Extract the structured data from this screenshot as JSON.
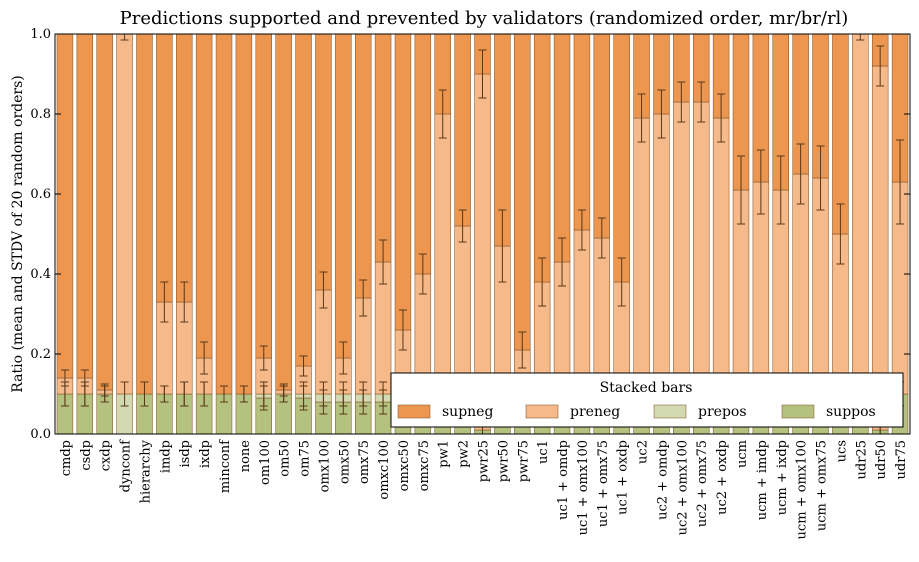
{
  "chart_data": {
    "type": "bar",
    "stacked": true,
    "title": "Predictions supported and prevented by validators (randomized order, mr/br/rl)",
    "xlabel": "",
    "ylabel": "Ratio (mean and STDV of 20 random orders)",
    "ylim": [
      0,
      1.0
    ],
    "yticks": [
      "0.0",
      "0.2",
      "0.4",
      "0.6",
      "0.8",
      "1.0"
    ],
    "grid": false,
    "legend": {
      "title": "Stacked bars",
      "placement": "bottom-right"
    },
    "categories": [
      "cmdp",
      "csdp",
      "cxdp",
      "dynconf",
      "hierarchy",
      "imdp",
      "isdp",
      "ixdp",
      "minconf",
      "none",
      "om100",
      "om50",
      "om75",
      "omx100",
      "omx50",
      "omx75",
      "omxc100",
      "omxc50",
      "omxc75",
      "pw1",
      "pw2",
      "pwr25",
      "pwr50",
      "pwr75",
      "uc1",
      "uc1 + omdp",
      "uc1 + omx100",
      "uc1 + omx75",
      "uc1 + oxdp",
      "uc2",
      "uc2 + omdp",
      "uc2 + omx100",
      "uc2 + omx75",
      "uc2 + oxdp",
      "ucm",
      "ucm + imdp",
      "ucm + ixdp",
      "ucm + omx100",
      "ucm + omx75",
      "ucs",
      "udr25",
      "udr50",
      "udr75"
    ],
    "series": [
      {
        "name": "suppos",
        "color": "#b5c17f",
        "values": [
          0.1,
          0.1,
          0.1,
          0.0,
          0.1,
          0.1,
          0.1,
          0.1,
          0.1,
          0.1,
          0.09,
          0.1,
          0.09,
          0.08,
          0.08,
          0.08,
          0.08,
          0.09,
          0.1,
          0.1,
          0.1,
          0.01,
          0.1,
          0.1,
          0.1,
          0.1,
          0.1,
          0.1,
          0.1,
          0.1,
          0.1,
          0.1,
          0.1,
          0.1,
          0.1,
          0.1,
          0.1,
          0.1,
          0.1,
          0.1,
          0.1,
          0.01,
          0.1
        ]
      },
      {
        "name": "prepos",
        "color": "#d3dab1",
        "values": [
          0.0,
          0.0,
          0.0,
          0.1,
          0.0,
          0.0,
          0.0,
          0.0,
          0.0,
          0.0,
          0.01,
          0.0,
          0.01,
          0.02,
          0.02,
          0.02,
          0.02,
          0.01,
          0.0,
          0.0,
          0.0,
          0.0,
          0.0,
          0.0,
          0.0,
          0.0,
          0.0,
          0.0,
          0.0,
          0.0,
          0.0,
          0.0,
          0.0,
          0.0,
          0.0,
          0.0,
          0.0,
          0.0,
          0.0,
          0.0,
          0.0,
          0.0,
          0.0
        ]
      },
      {
        "name": "preneg",
        "color": "#f5b98a",
        "values": [
          0.04,
          0.04,
          0.01,
          0.9,
          0.0,
          0.23,
          0.23,
          0.09,
          0.0,
          0.0,
          0.09,
          0.01,
          0.07,
          0.26,
          0.09,
          0.24,
          0.33,
          0.16,
          0.3,
          0.7,
          0.42,
          0.89,
          0.37,
          0.11,
          0.28,
          0.33,
          0.41,
          0.39,
          0.28,
          0.69,
          0.7,
          0.73,
          0.73,
          0.69,
          0.51,
          0.53,
          0.51,
          0.55,
          0.54,
          0.4,
          0.9,
          0.91,
          0.53
        ]
      },
      {
        "name": "supneg",
        "color": "#ec9650",
        "values": [
          0.86,
          0.86,
          0.89,
          0.0,
          0.9,
          0.67,
          0.67,
          0.81,
          0.9,
          0.9,
          0.81,
          0.89,
          0.83,
          0.64,
          0.81,
          0.66,
          0.57,
          0.74,
          0.6,
          0.2,
          0.48,
          0.1,
          0.53,
          0.79,
          0.62,
          0.57,
          0.49,
          0.51,
          0.62,
          0.21,
          0.2,
          0.17,
          0.17,
          0.21,
          0.39,
          0.37,
          0.39,
          0.35,
          0.36,
          0.5,
          0.0,
          0.08,
          0.37
        ]
      }
    ],
    "error_bars": {
      "suppos_top_std": [
        0.03,
        0.03,
        0.02,
        0.0,
        0.03,
        0.02,
        0.03,
        0.03,
        0.02,
        0.02,
        0.03,
        0.02,
        0.03,
        0.03,
        0.03,
        0.03,
        0.03,
        0.03,
        0.03,
        0.03,
        0.02,
        0.01,
        0.03,
        0.03,
        0.03,
        0.03,
        0.03,
        0.03,
        0.03,
        0.03,
        0.03,
        0.03,
        0.03,
        0.03,
        0.03,
        0.03,
        0.03,
        0.03,
        0.03,
        0.03,
        0.03,
        0.01,
        0.03
      ],
      "prepos_top_std": [
        0.03,
        0.03,
        0.02,
        0.03,
        0.03,
        0.02,
        0.03,
        0.03,
        0.02,
        0.02,
        0.03,
        0.02,
        0.03,
        0.03,
        0.03,
        0.03,
        0.03,
        0.03,
        0.03,
        0.03,
        0.02,
        0.01,
        0.03,
        0.03,
        0.03,
        0.03,
        0.03,
        0.03,
        0.03,
        0.03,
        0.03,
        0.03,
        0.03,
        0.03,
        0.03,
        0.03,
        0.03,
        0.03,
        0.03,
        0.03,
        0.03,
        0.01,
        0.03
      ],
      "preneg_top_std": [
        0.02,
        0.02,
        0.015,
        0.015,
        0.0,
        0.05,
        0.05,
        0.04,
        0.0,
        0.0,
        0.03,
        0.015,
        0.025,
        0.045,
        0.04,
        0.045,
        0.055,
        0.05,
        0.05,
        0.06,
        0.04,
        0.06,
        0.09,
        0.045,
        0.06,
        0.06,
        0.05,
        0.05,
        0.06,
        0.06,
        0.06,
        0.05,
        0.05,
        0.06,
        0.085,
        0.08,
        0.085,
        0.075,
        0.08,
        0.075,
        0.015,
        0.05,
        0.105
      ]
    }
  }
}
